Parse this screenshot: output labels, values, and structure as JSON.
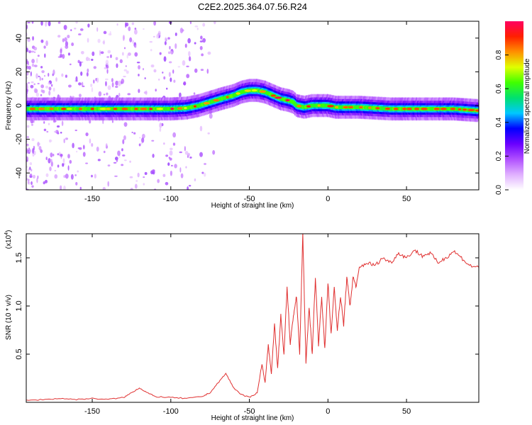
{
  "title": "C2E2.2025.364.07.56.R24",
  "colors": {
    "signal": "#e03030",
    "colorbar_stops": [
      "#ffffff",
      "#e0b0ff",
      "#b050ff",
      "#6a00ff",
      "#0000ff",
      "#00c8ff",
      "#00e070",
      "#40ff00",
      "#e0ff00",
      "#ff9000",
      "#ff2000",
      "#ff0060"
    ]
  },
  "chart_data": [
    {
      "type": "heatmap",
      "name": "spectrogram",
      "xlabel": "Height of straight line (km)",
      "ylabel": "Frequency (Hz)",
      "xlim": [
        -192,
        96
      ],
      "ylim": [
        -50,
        50
      ],
      "xticks": [
        -150,
        -100,
        -50,
        0,
        50
      ],
      "xtick_labels": [
        "-150",
        "-100",
        "-50",
        "0",
        "50"
      ],
      "yticks": [
        -40,
        -20,
        0,
        20,
        40
      ],
      "ytick_labels": [
        "-40",
        "-20",
        "0",
        "20",
        "40"
      ],
      "ridge_x": [
        -192,
        -150,
        -120,
        -100,
        -90,
        -82,
        -75,
        -68,
        -60,
        -55,
        -50,
        -45,
        -40,
        -35,
        -30,
        -25,
        -22,
        -20,
        -15,
        -10,
        -5,
        0,
        5,
        10,
        20,
        40,
        60,
        80,
        96
      ],
      "ridge_y": [
        -2,
        -2,
        -2,
        -2,
        -1.5,
        0,
        2,
        4,
        6,
        8,
        9,
        9,
        8,
        6,
        4,
        3,
        2,
        0,
        -1,
        0,
        0,
        0,
        -1,
        -1,
        -1,
        -2,
        -2,
        -2,
        -3
      ],
      "colorbar": {
        "label": "Normalized spectral amplitude",
        "ticks": [
          0.0,
          0.2,
          0.4,
          0.6,
          0.8
        ],
        "tick_labels": [
          "0.0",
          "0.2",
          "0.4",
          "0.6",
          "0.8"
        ],
        "range": [
          0,
          1
        ]
      }
    },
    {
      "type": "line",
      "name": "snr",
      "xlabel": "Height of straight line (km)",
      "ylabel": "SNR (10 * v/v)",
      "multiplier": "(x10",
      "multiplier_exp": "4",
      "xlim": [
        -192,
        96
      ],
      "ylim": [
        0,
        1.75
      ],
      "xticks": [
        -150,
        -100,
        -50,
        0,
        50
      ],
      "xtick_labels": [
        "-150",
        "-100",
        "-50",
        "0",
        "50"
      ],
      "yticks": [
        0.5,
        1.0,
        1.5
      ],
      "ytick_labels": [
        "0.5",
        "1.0",
        "1.5"
      ],
      "series": [
        {
          "name": "SNR",
          "x": [
            -192,
            -180,
            -170,
            -160,
            -150,
            -140,
            -130,
            -125,
            -120,
            -115,
            -110,
            -100,
            -90,
            -80,
            -75,
            -70,
            -65,
            -60,
            -55,
            -50,
            -45,
            -42,
            -40,
            -38,
            -36,
            -34,
            -32,
            -30,
            -28,
            -26,
            -24,
            -22,
            -20,
            -18,
            -16,
            -14,
            -12,
            -10,
            -8,
            -6,
            -4,
            -2,
            0,
            2,
            4,
            6,
            8,
            10,
            12,
            14,
            16,
            18,
            20,
            25,
            30,
            35,
            40,
            45,
            50,
            55,
            60,
            65,
            70,
            75,
            80,
            85,
            90,
            96
          ],
          "y": [
            0.02,
            0.03,
            0.04,
            0.03,
            0.04,
            0.03,
            0.05,
            0.1,
            0.15,
            0.1,
            0.06,
            0.05,
            0.04,
            0.06,
            0.1,
            0.2,
            0.3,
            0.15,
            0.08,
            0.05,
            0.1,
            0.4,
            0.2,
            0.6,
            0.3,
            0.8,
            0.35,
            0.9,
            0.5,
            1.2,
            0.6,
            0.9,
            1.1,
            0.5,
            1.75,
            0.4,
            1.0,
            0.5,
            1.3,
            0.6,
            1.1,
            0.55,
            1.25,
            0.7,
            1.2,
            0.75,
            1.1,
            0.8,
            1.3,
            1.0,
            1.3,
            1.2,
            1.4,
            1.45,
            1.42,
            1.5,
            1.45,
            1.55,
            1.5,
            1.58,
            1.52,
            1.55,
            1.45,
            1.5,
            1.57,
            1.5,
            1.42,
            1.4
          ]
        }
      ]
    }
  ]
}
